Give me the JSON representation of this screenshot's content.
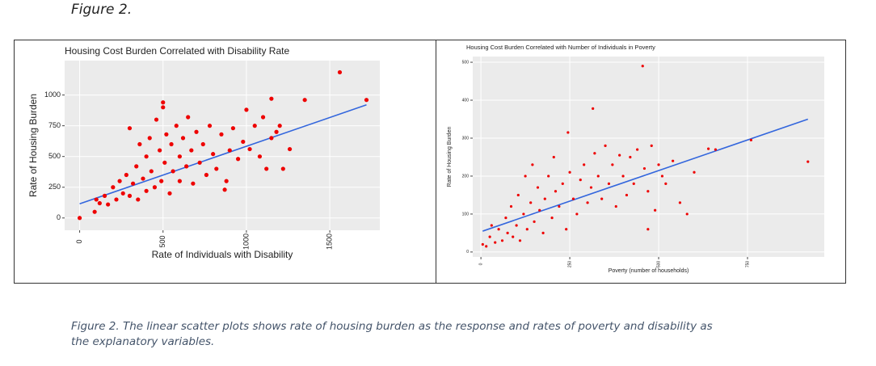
{
  "heading": "Figure 2.",
  "caption": "Figure 2. The linear scatter plots shows rate of housing burden as the response and rates of poverty and disability as the explanatory variables.",
  "chart_data": [
    {
      "type": "scatter",
      "title": "Housing Cost Burden Correlated with Disability Rate",
      "x_label": "Rate of Individuals with Disability",
      "y_label": "Rate of Housing Burden",
      "xlim": [
        -90,
        1800
      ],
      "ylim": [
        -100,
        1280
      ],
      "xticks": [
        0,
        500,
        1000,
        1500
      ],
      "yticks": [
        0,
        250,
        500,
        750,
        1000
      ],
      "grid": true,
      "points": {
        "color": "#ee0000",
        "x": [
          0,
          90,
          100,
          120,
          150,
          170,
          200,
          220,
          240,
          260,
          280,
          300,
          300,
          320,
          340,
          350,
          360,
          380,
          400,
          400,
          420,
          430,
          450,
          460,
          480,
          490,
          500,
          500,
          510,
          520,
          540,
          550,
          560,
          580,
          600,
          600,
          620,
          640,
          650,
          670,
          680,
          700,
          720,
          740,
          760,
          780,
          800,
          820,
          850,
          880,
          900,
          920,
          950,
          980,
          1000,
          1020,
          1050,
          1080,
          1100,
          1120,
          1150,
          1150,
          1180,
          1200,
          1220,
          1260,
          1350,
          1560,
          1720,
          870
        ],
        "y": [
          0,
          50,
          150,
          120,
          180,
          110,
          250,
          150,
          300,
          200,
          350,
          180,
          730,
          280,
          420,
          150,
          600,
          320,
          500,
          220,
          650,
          380,
          250,
          800,
          550,
          300,
          940,
          900,
          450,
          680,
          200,
          600,
          380,
          750,
          500,
          300,
          650,
          420,
          820,
          550,
          280,
          700,
          450,
          600,
          350,
          750,
          520,
          400,
          680,
          300,
          550,
          730,
          480,
          620,
          880,
          560,
          750,
          500,
          820,
          400,
          970,
          650,
          700,
          750,
          400,
          560,
          960,
          1185,
          960,
          230
        ]
      },
      "trend_line": {
        "color": "#3366dd",
        "x": [
          0,
          1720
        ],
        "y": [
          115,
          920
        ]
      }
    },
    {
      "type": "scatter",
      "title": "Housing Cost Burden Correlated with Number of Individuals in Poverty",
      "x_label": "Poverty (number of households)",
      "y_label": "Rate of Housing Burden",
      "xlim": [
        -23,
        966
      ],
      "ylim": [
        -13,
        515
      ],
      "xticks": [
        0,
        250,
        500,
        750
      ],
      "yticks": [
        0,
        100,
        200,
        300,
        400,
        500
      ],
      "grid": true,
      "points": {
        "color": "#ee0000",
        "x": [
          5,
          15,
          25,
          30,
          40,
          50,
          60,
          70,
          75,
          85,
          90,
          100,
          105,
          110,
          120,
          125,
          130,
          140,
          145,
          150,
          160,
          165,
          175,
          180,
          190,
          200,
          205,
          210,
          220,
          230,
          240,
          245,
          250,
          260,
          270,
          280,
          290,
          300,
          310,
          315,
          320,
          330,
          340,
          350,
          360,
          370,
          380,
          390,
          400,
          410,
          420,
          430,
          440,
          455,
          460,
          470,
          480,
          490,
          500,
          510,
          520,
          540,
          560,
          580,
          600,
          640,
          660,
          760,
          920,
          470
        ],
        "y": [
          20,
          15,
          40,
          70,
          25,
          60,
          30,
          90,
          50,
          120,
          40,
          70,
          150,
          30,
          100,
          200,
          60,
          130,
          230,
          80,
          170,
          110,
          50,
          140,
          200,
          90,
          250,
          160,
          120,
          180,
          60,
          315,
          210,
          140,
          100,
          190,
          230,
          130,
          170,
          378,
          260,
          200,
          140,
          280,
          180,
          230,
          120,
          255,
          200,
          150,
          250,
          180,
          270,
          490,
          220,
          160,
          280,
          110,
          230,
          200,
          180,
          240,
          130,
          100,
          210,
          272,
          270,
          295,
          238,
          60
        ]
      },
      "trend_line": {
        "color": "#3366dd",
        "x": [
          5,
          920
        ],
        "y": [
          55,
          350
        ]
      }
    }
  ]
}
